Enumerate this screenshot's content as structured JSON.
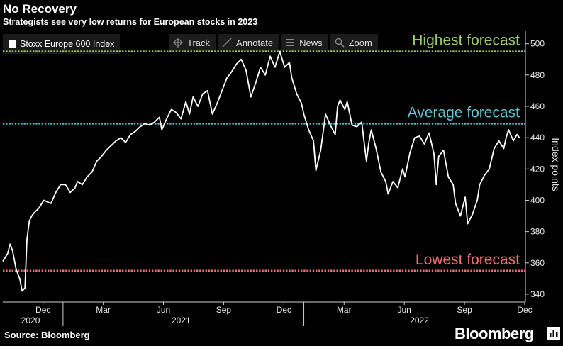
{
  "header": {
    "title": "No Recovery",
    "subtitle": "Strategists see very low returns for European stocks in 2023"
  },
  "legend": {
    "label": "Stoxx Europe 600 Index",
    "color": "#ffffff"
  },
  "toolbar": {
    "track_label": "Track",
    "annotate_label": "Annotate",
    "news_label": "News",
    "zoom_label": "Zoom"
  },
  "footer": {
    "source": "Source: Bloomberg",
    "brand": "Bloomberg"
  },
  "chart_data": {
    "type": "line",
    "ylabel": "Index points",
    "ylim": [
      335,
      508
    ],
    "yticks": [
      340,
      360,
      380,
      400,
      420,
      440,
      460,
      480,
      500
    ],
    "xlim": [
      0,
      2.17
    ],
    "x_month_ticks": [
      {
        "x": 0.167,
        "label": "Dec"
      },
      {
        "x": 0.417,
        "label": "Mar"
      },
      {
        "x": 0.667,
        "label": "Jun"
      },
      {
        "x": 0.917,
        "label": "Sep"
      },
      {
        "x": 1.167,
        "label": "Dec"
      },
      {
        "x": 1.417,
        "label": "Mar"
      },
      {
        "x": 1.667,
        "label": "Jun"
      },
      {
        "x": 1.917,
        "label": "Sep"
      },
      {
        "x": 2.167,
        "label": "Dec"
      }
    ],
    "x_year_labels": [
      {
        "x": 0.115,
        "label": "2020"
      },
      {
        "x": 0.74,
        "label": "2021"
      },
      {
        "x": 1.73,
        "label": "2022"
      }
    ],
    "year_boundaries": [
      0.25,
      1.25
    ],
    "reference_lines": [
      {
        "name": "Highest forecast",
        "value": 495,
        "color": "#9ccc65"
      },
      {
        "name": "Average forecast",
        "value": 449,
        "color": "#5fc4d4"
      },
      {
        "name": "Lowest forecast",
        "value": 355,
        "color": "#f07070"
      }
    ],
    "series": [
      {
        "name": "Stoxx Europe 600 Index",
        "x": [
          0,
          0.02,
          0.03,
          0.04,
          0.055,
          0.07,
          0.08,
          0.092,
          0.1,
          0.11,
          0.12,
          0.13,
          0.15,
          0.17,
          0.2,
          0.22,
          0.24,
          0.26,
          0.28,
          0.3,
          0.31,
          0.33,
          0.35,
          0.37,
          0.39,
          0.41,
          0.43,
          0.45,
          0.47,
          0.49,
          0.51,
          0.53,
          0.55,
          0.57,
          0.59,
          0.61,
          0.63,
          0.65,
          0.66,
          0.68,
          0.7,
          0.72,
          0.74,
          0.76,
          0.775,
          0.79,
          0.81,
          0.83,
          0.85,
          0.87,
          0.89,
          0.91,
          0.93,
          0.95,
          0.97,
          0.99,
          1.01,
          1.03,
          1.05,
          1.07,
          1.09,
          1.11,
          1.13,
          1.15,
          1.17,
          1.19,
          1.2,
          1.22,
          1.24,
          1.25,
          1.27,
          1.29,
          1.3,
          1.32,
          1.34,
          1.36,
          1.38,
          1.39,
          1.4,
          1.42,
          1.43,
          1.45,
          1.47,
          1.49,
          1.51,
          1.52,
          1.53,
          1.55,
          1.57,
          1.59,
          1.6,
          1.62,
          1.64,
          1.66,
          1.67,
          1.69,
          1.71,
          1.73,
          1.75,
          1.77,
          1.79,
          1.8,
          1.81,
          1.83,
          1.85,
          1.87,
          1.88,
          1.9,
          1.92,
          1.93,
          1.95,
          1.97,
          1.98,
          2.0,
          2.02,
          2.04,
          2.06,
          2.08,
          2.09,
          2.1,
          2.12,
          2.135,
          2.145
        ],
        "values": [
          361,
          366,
          372,
          368,
          356,
          350,
          342,
          344,
          375,
          387,
          390,
          392,
          395,
          400,
          398,
          405,
          410,
          410,
          405,
          408,
          412,
          410,
          415,
          418,
          425,
          428,
          432,
          435,
          438,
          440,
          437,
          442,
          444,
          447,
          449,
          448,
          450,
          453,
          445,
          452,
          458,
          456,
          452,
          463,
          455,
          466,
          460,
          468,
          470,
          455,
          462,
          470,
          478,
          482,
          487,
          490,
          483,
          466,
          475,
          485,
          480,
          492,
          485,
          495,
          485,
          488,
          478,
          468,
          462,
          455,
          445,
          438,
          419,
          432,
          455,
          448,
          442,
          460,
          464,
          458,
          463,
          448,
          447,
          450,
          425,
          437,
          445,
          433,
          418,
          412,
          404,
          412,
          408,
          420,
          415,
          430,
          440,
          441,
          436,
          443,
          430,
          410,
          428,
          432,
          415,
          410,
          398,
          390,
          402,
          385,
          391,
          400,
          410,
          416,
          420,
          433,
          438,
          433,
          440,
          445,
          438,
          442,
          440
        ]
      }
    ]
  }
}
